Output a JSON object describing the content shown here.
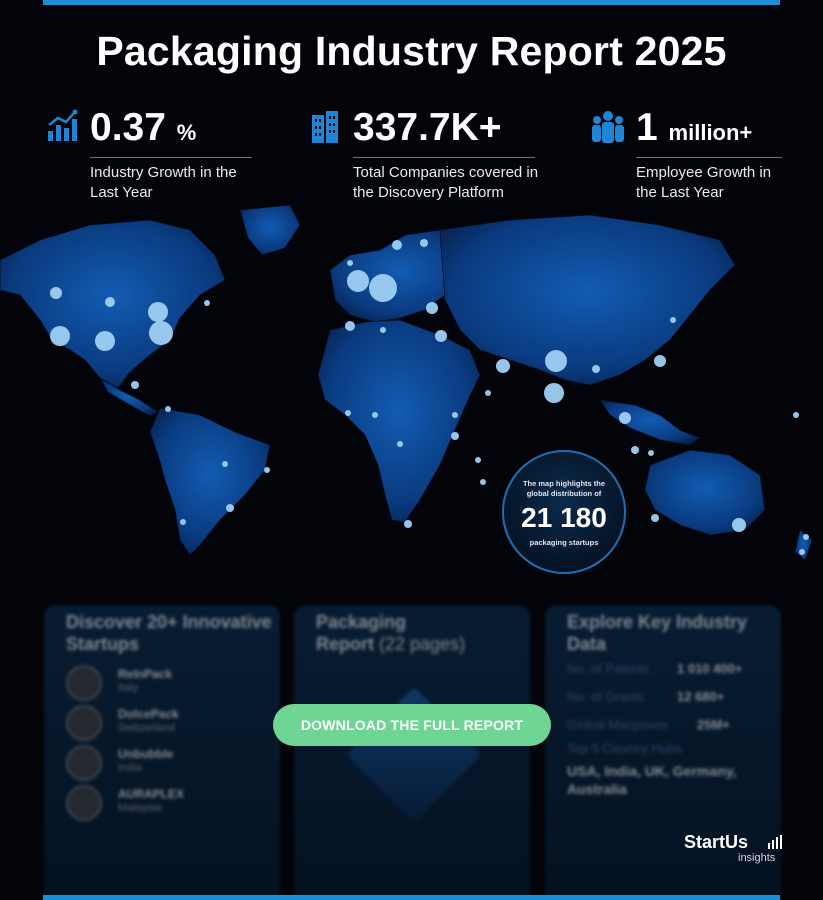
{
  "title": "Packaging Industry Report 2025",
  "stats": [
    {
      "value": "0.37",
      "unit": "%",
      "desc": "Industry Growth in the Last Year",
      "icon": "growth-chart-icon"
    },
    {
      "value": "337.7K+",
      "unit": "",
      "desc": "Total Companies covered in the Discovery Platform",
      "icon": "building-icon"
    },
    {
      "value": "1",
      "unit": "million+",
      "desc": "Employee Growth in the Last Year",
      "icon": "people-icon"
    }
  ],
  "map_badge": {
    "line1": "The map highlights the global distribution of",
    "number": "21 180",
    "line2": "packaging startups"
  },
  "cards": {
    "startups": {
      "title": "Discover 20+ Innovative Startups",
      "items": [
        {
          "name": "ReInPack",
          "country": "Italy"
        },
        {
          "name": "DolcePack",
          "country": "Switzerland"
        },
        {
          "name": "Unbubble",
          "country": "India"
        },
        {
          "name": "AURAPLEX",
          "country": "Malaysia"
        }
      ]
    },
    "report": {
      "title": "Packaging",
      "title2": "Report",
      "pages": "(22 pages)"
    },
    "data": {
      "title": "Explore Key Industry Data",
      "rows": [
        {
          "label": "No. of Patents",
          "value": "1 010 400+"
        },
        {
          "label": "No. of Grants",
          "value": "12 680+"
        },
        {
          "label": "Global Manpower",
          "value": "25M+"
        }
      ],
      "hubs_label": "Top 5 Country Hubs",
      "hubs": "USA, India, UK, Germany, Australia"
    }
  },
  "download_label": "DOWNLOAD THE FULL REPORT",
  "brand": {
    "name": "StartUs",
    "sub": "insights"
  },
  "colors": {
    "accent": "#1a8fd8",
    "button": "#6fd594",
    "map_land": "#0b3a7a",
    "dot": "#9fcff5"
  }
}
